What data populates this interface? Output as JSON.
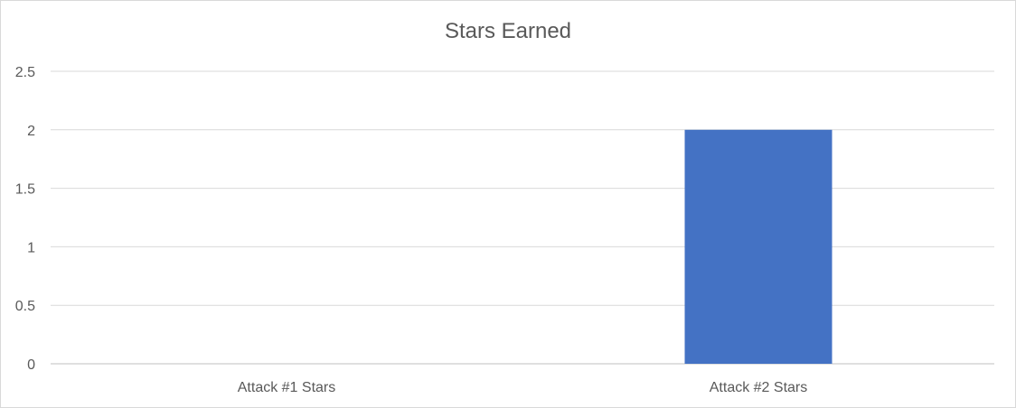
{
  "chart_data": {
    "type": "bar",
    "title": "Stars Earned",
    "categories": [
      "Attack #1 Stars",
      "Attack #2 Stars"
    ],
    "values": [
      0,
      2
    ],
    "xlabel": "",
    "ylabel": "",
    "ylim": [
      0,
      2.5
    ],
    "yticks": [
      "0",
      "0.5",
      "1",
      "1.5",
      "2",
      "2.5"
    ],
    "grid": true,
    "legend": "none",
    "colors": {
      "bar": "#4472c4",
      "grid": "#d9d9d9",
      "axis": "#bfbfbf",
      "text": "#595959"
    }
  }
}
